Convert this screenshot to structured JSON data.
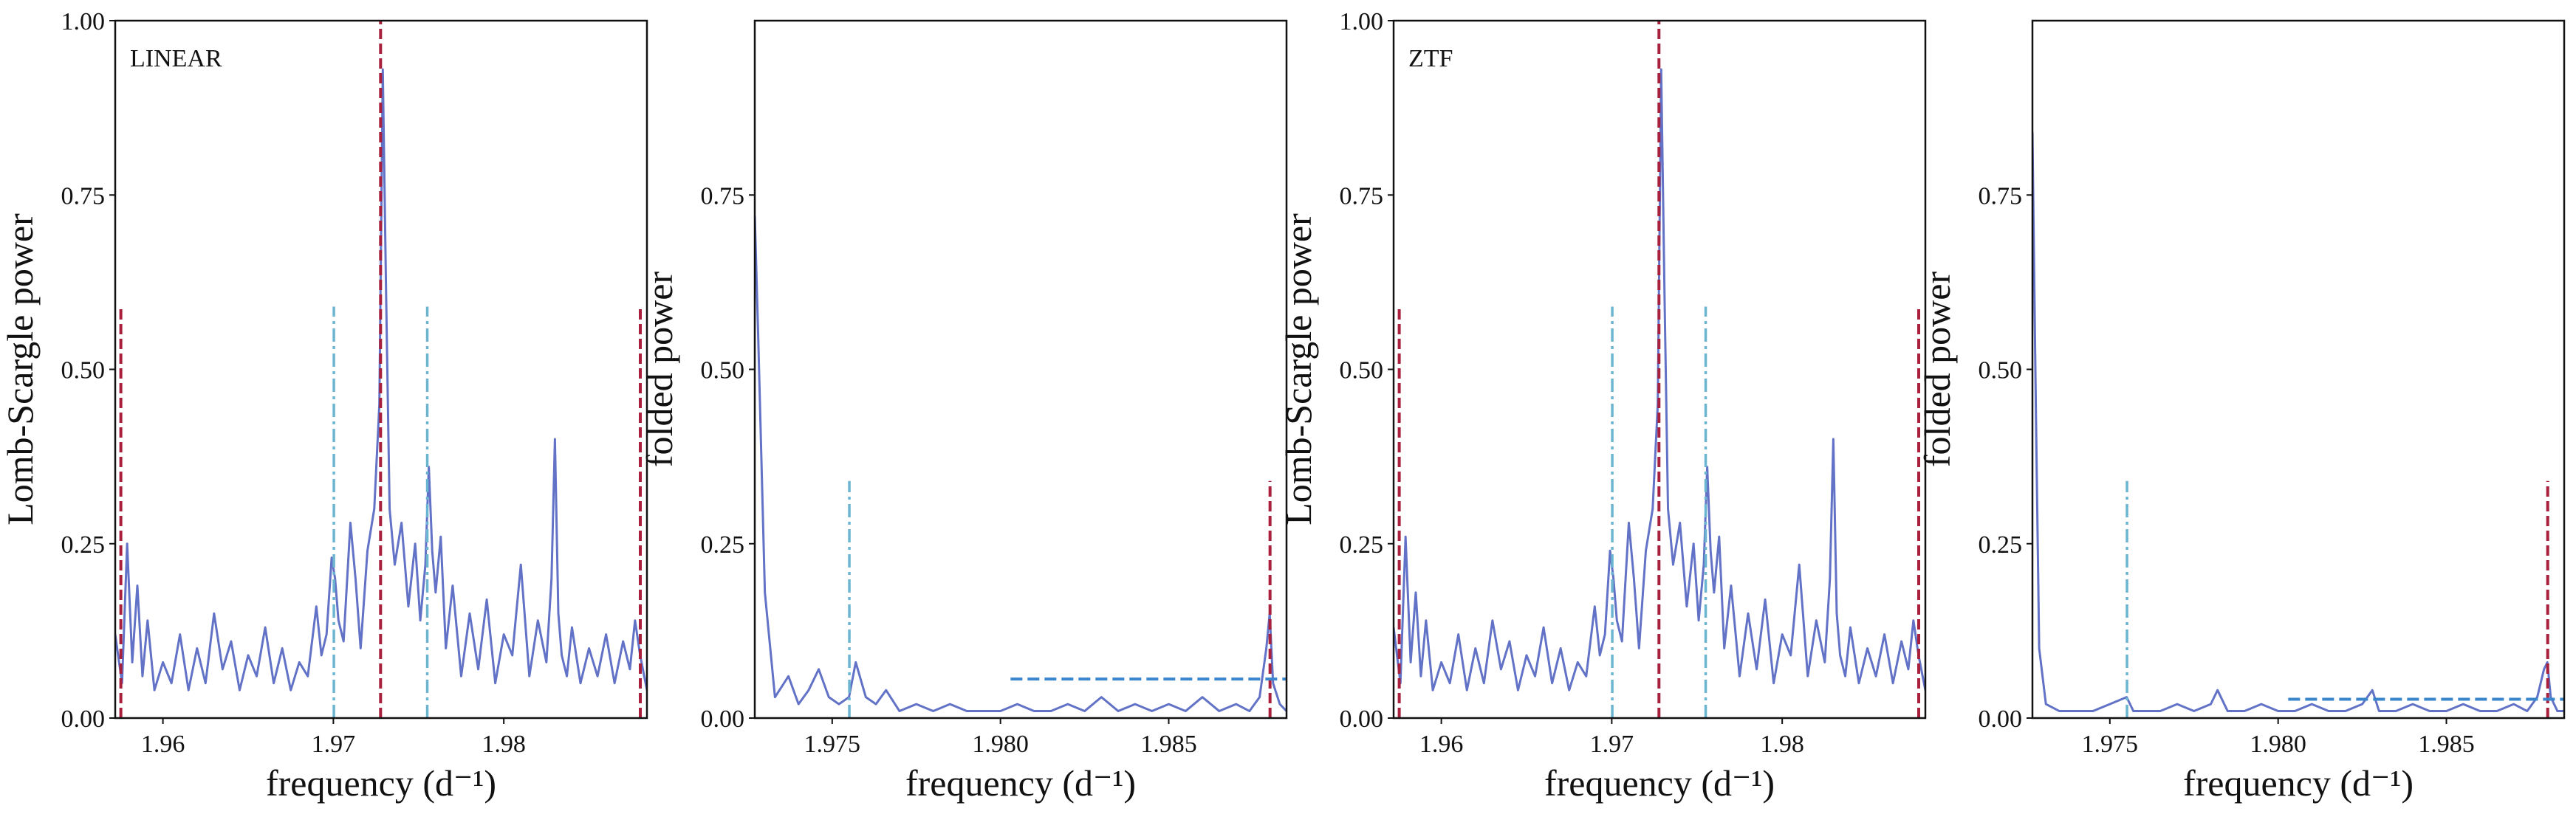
{
  "colors": {
    "series": "#6272c6",
    "main_peak": "#a8203c",
    "alias": "#6cb5d1",
    "threshold": "#3a86cc"
  },
  "chart_data": [
    {
      "type": "line",
      "annotation": "LINEAR",
      "xlabel": "frequency (d⁻¹)",
      "ylabel": "Lomb-Scargle power",
      "xlim": [
        1.9572,
        1.9884
      ],
      "ylim": [
        0,
        1.0
      ],
      "xticks": [
        1.96,
        1.97,
        1.98
      ],
      "xtick_labels": [
        "1.96",
        "1.97",
        "1.98"
      ],
      "yticks": [
        0,
        0.25,
        0.5,
        0.75,
        1.0
      ],
      "ytick_labels": [
        "0.00",
        "0.25",
        "0.50",
        "0.75",
        "1.00"
      ],
      "series": [
        {
          "x": [
            1.9572,
            1.9576,
            1.9579,
            1.9582,
            1.9585,
            1.9588,
            1.9591,
            1.9595,
            1.96,
            1.9605,
            1.961,
            1.9615,
            1.962,
            1.9625,
            1.963,
            1.9635,
            1.964,
            1.9645,
            1.965,
            1.9655,
            1.966,
            1.9665,
            1.967,
            1.9675,
            1.968,
            1.9685,
            1.969,
            1.9693,
            1.9696,
            1.9699,
            1.9701,
            1.9703,
            1.9706,
            1.971,
            1.9713,
            1.9716,
            1.972,
            1.9724,
            1.9727,
            1.9729,
            1.9731,
            1.9733,
            1.9736,
            1.974,
            1.9744,
            1.9748,
            1.9751,
            1.9754,
            1.9756,
            1.9758,
            1.976,
            1.9763,
            1.9766,
            1.977,
            1.9775,
            1.978,
            1.9785,
            1.979,
            1.9795,
            1.98,
            1.9805,
            1.981,
            1.9815,
            1.982,
            1.9825,
            1.9828,
            1.983,
            1.9832,
            1.9834,
            1.9837,
            1.984,
            1.9845,
            1.985,
            1.9855,
            1.986,
            1.9865,
            1.987,
            1.9874,
            1.9877,
            1.988,
            1.9884
          ],
          "y": [
            0.12,
            0.05,
            0.25,
            0.08,
            0.19,
            0.06,
            0.14,
            0.04,
            0.08,
            0.05,
            0.12,
            0.04,
            0.1,
            0.05,
            0.15,
            0.07,
            0.11,
            0.04,
            0.09,
            0.06,
            0.13,
            0.05,
            0.1,
            0.04,
            0.08,
            0.06,
            0.16,
            0.09,
            0.12,
            0.23,
            0.2,
            0.14,
            0.11,
            0.28,
            0.2,
            0.1,
            0.24,
            0.3,
            0.45,
            0.93,
            0.6,
            0.3,
            0.22,
            0.28,
            0.16,
            0.25,
            0.14,
            0.22,
            0.36,
            0.24,
            0.18,
            0.26,
            0.1,
            0.19,
            0.06,
            0.15,
            0.07,
            0.17,
            0.05,
            0.12,
            0.09,
            0.22,
            0.06,
            0.14,
            0.08,
            0.2,
            0.4,
            0.15,
            0.09,
            0.06,
            0.13,
            0.05,
            0.1,
            0.06,
            0.12,
            0.05,
            0.11,
            0.07,
            0.14,
            0.09,
            0.04
          ]
        }
      ],
      "vlines": [
        {
          "x": 1.97277,
          "ymax": 1.0,
          "kind": "main"
        },
        {
          "x": 1.95753,
          "ymax": 0.59,
          "kind": "main"
        },
        {
          "x": 1.98801,
          "ymax": 0.59,
          "kind": "main"
        },
        {
          "x": 1.97003,
          "ymax": 0.59,
          "kind": "alias"
        },
        {
          "x": 1.97551,
          "ymax": 0.59,
          "kind": "alias"
        }
      ],
      "hline": null
    },
    {
      "type": "line",
      "annotation": "",
      "xlabel": "frequency (d⁻¹)",
      "ylabel": "folded power",
      "xlim": [
        1.9727,
        1.9885
      ],
      "ylim": [
        0,
        1.0
      ],
      "xticks": [
        1.975,
        1.98,
        1.985
      ],
      "xtick_labels": [
        "1.975",
        "1.980",
        "1.985"
      ],
      "yticks": [
        0,
        0.25,
        0.5,
        0.75
      ],
      "ytick_labels": [
        "0.00",
        "0.25",
        "0.50",
        "0.75"
      ],
      "series": [
        {
          "x": [
            1.9727,
            1.9728,
            1.973,
            1.9733,
            1.9737,
            1.974,
            1.9743,
            1.9746,
            1.9749,
            1.9752,
            1.9755,
            1.9757,
            1.976,
            1.9763,
            1.9766,
            1.977,
            1.9775,
            1.978,
            1.9785,
            1.979,
            1.9795,
            1.98,
            1.9805,
            1.981,
            1.9815,
            1.982,
            1.9825,
            1.983,
            1.9835,
            1.984,
            1.9845,
            1.985,
            1.9855,
            1.986,
            1.9865,
            1.987,
            1.9874,
            1.9877,
            1.9879,
            1.988,
            1.9881,
            1.9883,
            1.9885
          ],
          "y": [
            0.72,
            0.55,
            0.18,
            0.03,
            0.06,
            0.02,
            0.04,
            0.07,
            0.03,
            0.02,
            0.03,
            0.08,
            0.03,
            0.02,
            0.04,
            0.01,
            0.02,
            0.01,
            0.02,
            0.01,
            0.01,
            0.01,
            0.02,
            0.01,
            0.01,
            0.02,
            0.01,
            0.03,
            0.01,
            0.02,
            0.01,
            0.02,
            0.01,
            0.03,
            0.01,
            0.02,
            0.01,
            0.03,
            0.1,
            0.15,
            0.05,
            0.02,
            0.01
          ]
        }
      ],
      "vlines": [
        {
          "x": 1.97551,
          "ymax": 0.34,
          "kind": "alias"
        },
        {
          "x": 1.98801,
          "ymax": 0.34,
          "kind": "main"
        }
      ],
      "hline": {
        "y": 0.056,
        "xmin": 1.9803,
        "xmax": 1.9885
      }
    },
    {
      "type": "line",
      "annotation": "ZTF",
      "xlabel": "frequency (d⁻¹)",
      "ylabel": "Lomb-Scargle power",
      "xlim": [
        1.9572,
        1.9884
      ],
      "ylim": [
        0,
        1.0
      ],
      "xticks": [
        1.96,
        1.97,
        1.98
      ],
      "xtick_labels": [
        "1.96",
        "1.97",
        "1.98"
      ],
      "yticks": [
        0,
        0.25,
        0.5,
        0.75,
        1.0
      ],
      "ytick_labels": [
        "0.00",
        "0.25",
        "0.50",
        "0.75",
        "1.00"
      ],
      "series": [
        {
          "x": [
            1.9572,
            1.9576,
            1.9579,
            1.9582,
            1.9585,
            1.9588,
            1.9591,
            1.9595,
            1.96,
            1.9605,
            1.961,
            1.9615,
            1.962,
            1.9625,
            1.963,
            1.9635,
            1.964,
            1.9645,
            1.965,
            1.9655,
            1.966,
            1.9665,
            1.967,
            1.9675,
            1.968,
            1.9685,
            1.969,
            1.9693,
            1.9696,
            1.9699,
            1.9701,
            1.9703,
            1.9706,
            1.971,
            1.9713,
            1.9716,
            1.972,
            1.9724,
            1.9727,
            1.9729,
            1.9731,
            1.9733,
            1.9736,
            1.974,
            1.9744,
            1.9748,
            1.9751,
            1.9754,
            1.9756,
            1.9758,
            1.976,
            1.9763,
            1.9766,
            1.977,
            1.9775,
            1.978,
            1.9785,
            1.979,
            1.9795,
            1.98,
            1.9805,
            1.981,
            1.9815,
            1.982,
            1.9825,
            1.9828,
            1.983,
            1.9832,
            1.9834,
            1.9837,
            1.984,
            1.9845,
            1.985,
            1.9855,
            1.986,
            1.9865,
            1.987,
            1.9874,
            1.9877,
            1.988,
            1.9884
          ],
          "y": [
            0.13,
            0.05,
            0.26,
            0.08,
            0.18,
            0.06,
            0.14,
            0.04,
            0.08,
            0.05,
            0.12,
            0.04,
            0.1,
            0.05,
            0.14,
            0.07,
            0.11,
            0.04,
            0.09,
            0.06,
            0.13,
            0.05,
            0.1,
            0.04,
            0.08,
            0.06,
            0.16,
            0.09,
            0.12,
            0.24,
            0.2,
            0.14,
            0.11,
            0.28,
            0.2,
            0.1,
            0.24,
            0.3,
            0.45,
            0.93,
            0.6,
            0.3,
            0.22,
            0.28,
            0.16,
            0.25,
            0.14,
            0.22,
            0.36,
            0.24,
            0.18,
            0.26,
            0.1,
            0.19,
            0.06,
            0.15,
            0.07,
            0.17,
            0.05,
            0.12,
            0.09,
            0.22,
            0.06,
            0.14,
            0.08,
            0.2,
            0.4,
            0.15,
            0.09,
            0.06,
            0.13,
            0.05,
            0.1,
            0.06,
            0.12,
            0.05,
            0.11,
            0.07,
            0.14,
            0.09,
            0.04
          ]
        }
      ],
      "vlines": [
        {
          "x": 1.97277,
          "ymax": 1.0,
          "kind": "main"
        },
        {
          "x": 1.95753,
          "ymax": 0.59,
          "kind": "main"
        },
        {
          "x": 1.98801,
          "ymax": 0.59,
          "kind": "main"
        },
        {
          "x": 1.97003,
          "ymax": 0.59,
          "kind": "alias"
        },
        {
          "x": 1.97551,
          "ymax": 0.59,
          "kind": "alias"
        }
      ],
      "hline": null
    },
    {
      "type": "line",
      "annotation": "",
      "xlabel": "frequency (d⁻¹)",
      "ylabel": "folded power",
      "xlim": [
        1.9727,
        1.9885
      ],
      "ylim": [
        0,
        1.0
      ],
      "xticks": [
        1.975,
        1.98,
        1.985
      ],
      "xtick_labels": [
        "1.975",
        "1.980",
        "1.985"
      ],
      "yticks": [
        0,
        0.25,
        0.5,
        0.75
      ],
      "ytick_labels": [
        "0.00",
        "0.25",
        "0.50",
        "0.75"
      ],
      "series": [
        {
          "x": [
            1.9727,
            1.9728,
            1.9729,
            1.9731,
            1.9735,
            1.974,
            1.9745,
            1.975,
            1.9755,
            1.9757,
            1.976,
            1.9765,
            1.977,
            1.9775,
            1.978,
            1.9782,
            1.9785,
            1.979,
            1.9795,
            1.98,
            1.9805,
            1.981,
            1.9815,
            1.982,
            1.9825,
            1.9828,
            1.983,
            1.9835,
            1.984,
            1.9845,
            1.985,
            1.9855,
            1.986,
            1.9865,
            1.987,
            1.9874,
            1.9877,
            1.9879,
            1.988,
            1.9881,
            1.9883,
            1.9885
          ],
          "y": [
            0.84,
            0.45,
            0.1,
            0.02,
            0.01,
            0.01,
            0.01,
            0.02,
            0.03,
            0.01,
            0.01,
            0.01,
            0.02,
            0.01,
            0.02,
            0.04,
            0.01,
            0.01,
            0.02,
            0.01,
            0.01,
            0.02,
            0.01,
            0.01,
            0.02,
            0.04,
            0.01,
            0.01,
            0.02,
            0.01,
            0.01,
            0.02,
            0.01,
            0.01,
            0.02,
            0.01,
            0.03,
            0.07,
            0.08,
            0.03,
            0.01,
            0.01
          ]
        }
      ],
      "vlines": [
        {
          "x": 1.97551,
          "ymax": 0.34,
          "kind": "alias"
        },
        {
          "x": 1.98801,
          "ymax": 0.34,
          "kind": "main"
        }
      ],
      "hline": {
        "y": 0.027,
        "xmin": 1.9803,
        "xmax": 1.9885
      }
    }
  ]
}
